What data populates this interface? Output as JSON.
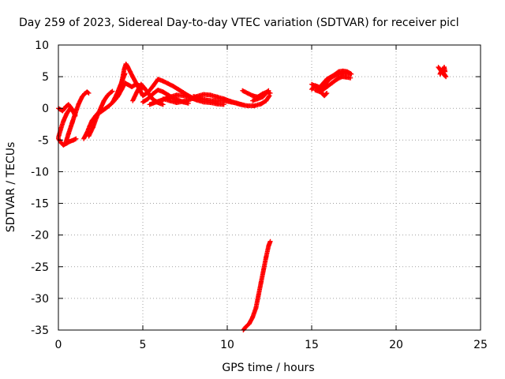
{
  "chart_data": {
    "type": "scatter",
    "title": "Day 259 of 2023, Sidereal Day-to-day VTEC variation (SDTVAR) for receiver picl",
    "xlabel": "GPS time / hours",
    "ylabel": "SDTVAR / TECUs",
    "xlim": [
      0,
      25
    ],
    "ylim": [
      -35,
      10
    ],
    "xticks": [
      0,
      5,
      10,
      15,
      20,
      25
    ],
    "yticks": [
      -35,
      -30,
      -25,
      -20,
      -15,
      -10,
      -5,
      0,
      5,
      10
    ],
    "grid": true,
    "marker_color": "#ff0000",
    "series": [
      {
        "name": "SDTVAR",
        "segments": [
          [
            [
              0.0,
              0.0
            ],
            [
              0.25,
              -0.4
            ],
            [
              0.45,
              0.3
            ],
            [
              0.6,
              0.6
            ],
            [
              0.75,
              0.1
            ],
            [
              0.9,
              -0.5
            ],
            [
              1.0,
              -1.0
            ]
          ],
          [
            [
              0.0,
              -4.8
            ],
            [
              0.15,
              -5.4
            ],
            [
              0.3,
              -5.8
            ],
            [
              0.5,
              -5.5
            ],
            [
              0.7,
              -5.2
            ],
            [
              0.9,
              -5.0
            ],
            [
              1.05,
              -4.8
            ]
          ],
          [
            [
              0.0,
              -4.6
            ],
            [
              0.15,
              -3.2
            ],
            [
              0.3,
              -2.0
            ],
            [
              0.5,
              -0.8
            ],
            [
              0.7,
              0.0
            ],
            [
              0.9,
              -0.6
            ],
            [
              1.0,
              -1.2
            ]
          ],
          [
            [
              0.45,
              -5.3
            ],
            [
              0.6,
              -4.0
            ],
            [
              0.75,
              -2.8
            ],
            [
              0.85,
              -2.0
            ]
          ],
          [
            [
              0.8,
              -2.4
            ],
            [
              1.0,
              -0.8
            ],
            [
              1.2,
              0.7
            ],
            [
              1.4,
              1.8
            ],
            [
              1.55,
              2.3
            ],
            [
              1.7,
              2.6
            ],
            [
              1.8,
              2.4
            ]
          ],
          [
            [
              1.5,
              -4.8
            ],
            [
              1.7,
              -3.8
            ],
            [
              1.85,
              -2.8
            ],
            [
              2.0,
              -1.9
            ],
            [
              2.2,
              -1.2
            ],
            [
              2.4,
              -0.6
            ]
          ],
          [
            [
              1.8,
              -4.4
            ],
            [
              2.05,
              -3.0
            ],
            [
              2.25,
              -1.5
            ],
            [
              2.5,
              0.0
            ],
            [
              2.7,
              1.2
            ],
            [
              2.9,
              2.0
            ],
            [
              3.1,
              2.5
            ],
            [
              3.2,
              2.7
            ]
          ],
          [
            [
              2.5,
              -0.6
            ],
            [
              2.8,
              0.0
            ],
            [
              3.0,
              0.4
            ],
            [
              3.2,
              0.9
            ],
            [
              3.4,
              1.5
            ],
            [
              3.6,
              2.3
            ]
          ],
          [
            [
              3.2,
              0.9
            ],
            [
              3.45,
              2.2
            ],
            [
              3.65,
              3.5
            ],
            [
              3.8,
              4.5
            ],
            [
              3.95,
              5.5
            ]
          ],
          [
            [
              3.7,
              3.5
            ],
            [
              3.9,
              6.2
            ],
            [
              4.0,
              7.0
            ],
            [
              4.1,
              6.6
            ],
            [
              4.25,
              5.8
            ],
            [
              4.4,
              5.0
            ],
            [
              4.6,
              4.0
            ],
            [
              4.8,
              3.0
            ],
            [
              5.0,
              2.0
            ]
          ],
          [
            [
              3.5,
              1.8
            ],
            [
              3.75,
              3.0
            ],
            [
              3.95,
              4.0
            ],
            [
              4.15,
              3.7
            ],
            [
              4.35,
              3.4
            ],
            [
              4.6,
              3.8
            ],
            [
              4.8,
              3.6
            ],
            [
              5.0,
              3.2
            ]
          ],
          [
            [
              4.4,
              1.2
            ],
            [
              4.65,
              2.6
            ],
            [
              4.9,
              3.8
            ],
            [
              5.1,
              3.2
            ],
            [
              5.35,
              2.3
            ],
            [
              5.6,
              1.4
            ],
            [
              5.9,
              0.9
            ],
            [
              6.2,
              0.6
            ]
          ],
          [
            [
              5.0,
              2.0
            ],
            [
              5.3,
              2.5
            ],
            [
              5.6,
              3.5
            ],
            [
              5.9,
              4.6
            ],
            [
              6.2,
              4.3
            ],
            [
              6.5,
              3.9
            ],
            [
              6.8,
              3.5
            ],
            [
              7.1,
              3.0
            ],
            [
              7.4,
              2.5
            ],
            [
              7.7,
              2.0
            ],
            [
              8.0,
              1.6
            ],
            [
              8.3,
              1.4
            ]
          ],
          [
            [
              5.0,
              1.0
            ],
            [
              5.3,
              1.5
            ],
            [
              5.6,
              2.3
            ],
            [
              5.9,
              2.9
            ],
            [
              6.2,
              2.6
            ],
            [
              6.5,
              2.1
            ],
            [
              6.8,
              1.6
            ],
            [
              7.1,
              1.3
            ],
            [
              7.4,
              1.0
            ],
            [
              7.7,
              0.8
            ]
          ],
          [
            [
              5.4,
              0.6
            ],
            [
              5.8,
              1.0
            ],
            [
              6.2,
              1.4
            ],
            [
              6.6,
              1.8
            ],
            [
              7.0,
              2.1
            ],
            [
              7.4,
              2.0
            ],
            [
              7.8,
              1.7
            ],
            [
              8.2,
              1.3
            ],
            [
              8.6,
              1.0
            ],
            [
              9.0,
              0.9
            ],
            [
              9.4,
              0.7
            ],
            [
              9.8,
              0.6
            ]
          ],
          [
            [
              6.2,
              1.5
            ],
            [
              6.6,
              1.2
            ],
            [
              7.0,
              0.9
            ],
            [
              7.4,
              1.1
            ],
            [
              7.8,
              1.4
            ],
            [
              8.2,
              1.9
            ],
            [
              8.6,
              2.2
            ],
            [
              9.0,
              2.1
            ],
            [
              9.4,
              1.8
            ],
            [
              9.8,
              1.5
            ],
            [
              10.2,
              1.1
            ],
            [
              10.6,
              0.8
            ],
            [
              11.0,
              0.5
            ]
          ],
          [
            [
              8.0,
              1.9
            ],
            [
              8.4,
              1.6
            ],
            [
              8.8,
              1.3
            ],
            [
              9.2,
              1.2
            ],
            [
              9.6,
              1.2
            ],
            [
              10.0,
              1.1
            ],
            [
              10.4,
              0.9
            ],
            [
              10.8,
              0.6
            ],
            [
              11.2,
              0.4
            ],
            [
              11.6,
              0.4
            ],
            [
              12.0,
              0.7
            ],
            [
              12.3,
              1.2
            ],
            [
              12.5,
              2.0
            ]
          ],
          [
            [
              10.9,
              2.8
            ],
            [
              11.2,
              2.4
            ],
            [
              11.5,
              2.0
            ],
            [
              11.8,
              1.8
            ],
            [
              12.1,
              2.3
            ],
            [
              12.35,
              2.6
            ],
            [
              12.55,
              2.4
            ]
          ],
          [
            [
              11.5,
              1.2
            ],
            [
              11.8,
              1.5
            ],
            [
              12.1,
              1.8
            ],
            [
              12.3,
              2.4
            ],
            [
              12.45,
              2.8
            ]
          ],
          [
            [
              15.0,
              3.0
            ],
            [
              15.2,
              3.6
            ],
            [
              15.4,
              3.4
            ],
            [
              15.6,
              2.4
            ],
            [
              15.75,
              2.0
            ],
            [
              15.9,
              2.4
            ]
          ],
          [
            [
              15.0,
              3.8
            ],
            [
              15.3,
              3.4
            ],
            [
              15.55,
              3.0
            ],
            [
              15.8,
              3.8
            ],
            [
              16.0,
              4.5
            ],
            [
              16.25,
              5.0
            ],
            [
              16.5,
              5.3
            ],
            [
              16.8,
              5.5
            ],
            [
              17.1,
              5.6
            ],
            [
              17.3,
              5.5
            ]
          ],
          [
            [
              15.5,
              3.4
            ],
            [
              15.7,
              4.0
            ],
            [
              15.9,
              4.6
            ],
            [
              16.1,
              4.9
            ],
            [
              16.35,
              5.3
            ],
            [
              16.6,
              5.8
            ],
            [
              16.85,
              5.9
            ],
            [
              17.1,
              5.8
            ],
            [
              17.35,
              5.4
            ]
          ],
          [
            [
              15.2,
              2.9
            ],
            [
              15.5,
              2.6
            ],
            [
              15.7,
              3.0
            ],
            [
              15.95,
              3.5
            ],
            [
              16.2,
              4.0
            ],
            [
              16.5,
              4.6
            ],
            [
              16.8,
              5.0
            ],
            [
              17.1,
              4.9
            ],
            [
              17.3,
              4.8
            ]
          ],
          [
            [
              22.5,
              6.5
            ],
            [
              22.65,
              6.0
            ],
            [
              22.8,
              5.4
            ],
            [
              22.95,
              5.0
            ],
            [
              22.7,
              6.0
            ],
            [
              22.6,
              5.4
            ],
            [
              22.85,
              6.5
            ],
            [
              22.9,
              5.8
            ]
          ],
          [
            [
              10.95,
              -35.0
            ],
            [
              11.1,
              -34.5
            ],
            [
              11.3,
              -34.0
            ],
            [
              11.5,
              -33.0
            ],
            [
              11.7,
              -31.5
            ],
            [
              11.85,
              -29.5
            ],
            [
              12.0,
              -27.5
            ],
            [
              12.15,
              -25.5
            ],
            [
              12.3,
              -23.5
            ],
            [
              12.45,
              -21.7
            ],
            [
              12.55,
              -21.0
            ]
          ]
        ]
      }
    ]
  }
}
